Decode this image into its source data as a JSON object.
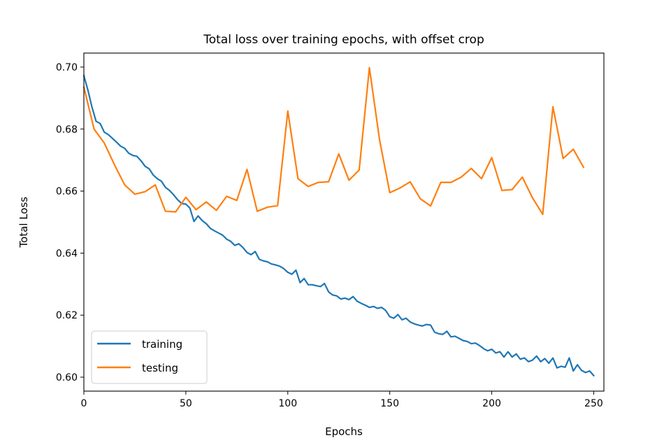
{
  "chart_data": {
    "type": "line",
    "title": "Total loss over training epochs, with offset crop",
    "xlabel": "Epochs",
    "ylabel": "Total Loss",
    "xlim": [
      0,
      255
    ],
    "ylim": [
      0.5955,
      0.7045
    ],
    "xticks": [
      0,
      50,
      100,
      150,
      200,
      250
    ],
    "yticks": [
      0.6,
      0.62,
      0.64,
      0.66,
      0.68,
      0.7
    ],
    "xtick_labels": [
      "0",
      "50",
      "100",
      "150",
      "200",
      "250"
    ],
    "ytick_labels": [
      "0.60",
      "0.62",
      "0.64",
      "0.66",
      "0.68",
      "0.70"
    ],
    "grid": false,
    "legend_position": "lower-left",
    "series": [
      {
        "name": "training",
        "color": "#1f77b4",
        "points": [
          [
            0,
            0.6972
          ],
          [
            2,
            0.6925
          ],
          [
            4,
            0.687
          ],
          [
            6,
            0.6825
          ],
          [
            8,
            0.6818
          ],
          [
            10,
            0.679
          ],
          [
            12,
            0.6782
          ],
          [
            14,
            0.677
          ],
          [
            16,
            0.6758
          ],
          [
            18,
            0.6745
          ],
          [
            20,
            0.6738
          ],
          [
            22,
            0.6722
          ],
          [
            24,
            0.6715
          ],
          [
            26,
            0.6712
          ],
          [
            28,
            0.6698
          ],
          [
            30,
            0.668
          ],
          [
            32,
            0.6672
          ],
          [
            34,
            0.6652
          ],
          [
            36,
            0.664
          ],
          [
            38,
            0.6632
          ],
          [
            40,
            0.6612
          ],
          [
            42,
            0.6602
          ],
          [
            44,
            0.6588
          ],
          [
            46,
            0.6572
          ],
          [
            48,
            0.656
          ],
          [
            50,
            0.6558
          ],
          [
            52,
            0.6545
          ],
          [
            54,
            0.6502
          ],
          [
            56,
            0.652
          ],
          [
            58,
            0.6505
          ],
          [
            60,
            0.6495
          ],
          [
            62,
            0.648
          ],
          [
            64,
            0.6472
          ],
          [
            66,
            0.6465
          ],
          [
            68,
            0.6458
          ],
          [
            70,
            0.6445
          ],
          [
            72,
            0.6438
          ],
          [
            74,
            0.6425
          ],
          [
            76,
            0.643
          ],
          [
            78,
            0.6418
          ],
          [
            80,
            0.6402
          ],
          [
            82,
            0.6395
          ],
          [
            84,
            0.6405
          ],
          [
            86,
            0.638
          ],
          [
            88,
            0.6375
          ],
          [
            90,
            0.6372
          ],
          [
            92,
            0.6365
          ],
          [
            94,
            0.6362
          ],
          [
            96,
            0.6358
          ],
          [
            98,
            0.635
          ],
          [
            100,
            0.6338
          ],
          [
            102,
            0.6332
          ],
          [
            104,
            0.6345
          ],
          [
            106,
            0.6305
          ],
          [
            108,
            0.6318
          ],
          [
            110,
            0.6298
          ],
          [
            112,
            0.6298
          ],
          [
            114,
            0.6295
          ],
          [
            116,
            0.6292
          ],
          [
            118,
            0.6302
          ],
          [
            120,
            0.6275
          ],
          [
            122,
            0.6265
          ],
          [
            124,
            0.6262
          ],
          [
            126,
            0.6252
          ],
          [
            128,
            0.6255
          ],
          [
            130,
            0.625
          ],
          [
            132,
            0.626
          ],
          [
            134,
            0.6245
          ],
          [
            136,
            0.6238
          ],
          [
            138,
            0.6232
          ],
          [
            140,
            0.6225
          ],
          [
            142,
            0.6228
          ],
          [
            144,
            0.6222
          ],
          [
            146,
            0.6225
          ],
          [
            148,
            0.6215
          ],
          [
            150,
            0.6195
          ],
          [
            152,
            0.619
          ],
          [
            154,
            0.6202
          ],
          [
            156,
            0.6185
          ],
          [
            158,
            0.619
          ],
          [
            160,
            0.6178
          ],
          [
            162,
            0.6172
          ],
          [
            164,
            0.6168
          ],
          [
            166,
            0.6165
          ],
          [
            168,
            0.617
          ],
          [
            170,
            0.6168
          ],
          [
            172,
            0.6145
          ],
          [
            174,
            0.614
          ],
          [
            176,
            0.6138
          ],
          [
            178,
            0.6148
          ],
          [
            180,
            0.613
          ],
          [
            182,
            0.6132
          ],
          [
            184,
            0.6125
          ],
          [
            186,
            0.6118
          ],
          [
            188,
            0.6115
          ],
          [
            190,
            0.6108
          ],
          [
            192,
            0.611
          ],
          [
            194,
            0.6102
          ],
          [
            196,
            0.6092
          ],
          [
            198,
            0.6085
          ],
          [
            200,
            0.609
          ],
          [
            202,
            0.6078
          ],
          [
            204,
            0.6082
          ],
          [
            206,
            0.6065
          ],
          [
            208,
            0.6082
          ],
          [
            210,
            0.6065
          ],
          [
            212,
            0.6075
          ],
          [
            214,
            0.6058
          ],
          [
            216,
            0.6062
          ],
          [
            218,
            0.605
          ],
          [
            220,
            0.6055
          ],
          [
            222,
            0.6068
          ],
          [
            224,
            0.605
          ],
          [
            226,
            0.606
          ],
          [
            228,
            0.6045
          ],
          [
            230,
            0.6062
          ],
          [
            232,
            0.603
          ],
          [
            234,
            0.6035
          ],
          [
            236,
            0.6032
          ],
          [
            238,
            0.6062
          ],
          [
            240,
            0.602
          ],
          [
            242,
            0.604
          ],
          [
            244,
            0.6022
          ],
          [
            246,
            0.6015
          ],
          [
            248,
            0.602
          ],
          [
            250,
            0.6005
          ]
        ]
      },
      {
        "name": "testing",
        "color": "#ff7f0e",
        "points": [
          [
            0,
            0.6935
          ],
          [
            5,
            0.68
          ],
          [
            10,
            0.6755
          ],
          [
            15,
            0.6685
          ],
          [
            20,
            0.662
          ],
          [
            25,
            0.659
          ],
          [
            30,
            0.6598
          ],
          [
            35,
            0.662
          ],
          [
            40,
            0.6535
          ],
          [
            45,
            0.6533
          ],
          [
            50,
            0.658
          ],
          [
            55,
            0.654
          ],
          [
            60,
            0.6565
          ],
          [
            65,
            0.6538
          ],
          [
            70,
            0.6583
          ],
          [
            75,
            0.657
          ],
          [
            80,
            0.667
          ],
          [
            85,
            0.6535
          ],
          [
            90,
            0.6548
          ],
          [
            95,
            0.6553
          ],
          [
            100,
            0.6858
          ],
          [
            105,
            0.664
          ],
          [
            110,
            0.6615
          ],
          [
            115,
            0.6628
          ],
          [
            120,
            0.663
          ],
          [
            125,
            0.672
          ],
          [
            130,
            0.6635
          ],
          [
            135,
            0.6668
          ],
          [
            140,
            0.6998
          ],
          [
            145,
            0.6765
          ],
          [
            150,
            0.6595
          ],
          [
            155,
            0.661
          ],
          [
            160,
            0.663
          ],
          [
            165,
            0.6575
          ],
          [
            170,
            0.6552
          ],
          [
            175,
            0.6628
          ],
          [
            180,
            0.6628
          ],
          [
            185,
            0.6645
          ],
          [
            190,
            0.6673
          ],
          [
            195,
            0.664
          ],
          [
            200,
            0.6708
          ],
          [
            205,
            0.6602
          ],
          [
            210,
            0.6605
          ],
          [
            215,
            0.6645
          ],
          [
            220,
            0.6578
          ],
          [
            225,
            0.6525
          ],
          [
            230,
            0.6872
          ],
          [
            235,
            0.6705
          ],
          [
            240,
            0.6735
          ],
          [
            245,
            0.6677
          ]
        ]
      }
    ]
  }
}
